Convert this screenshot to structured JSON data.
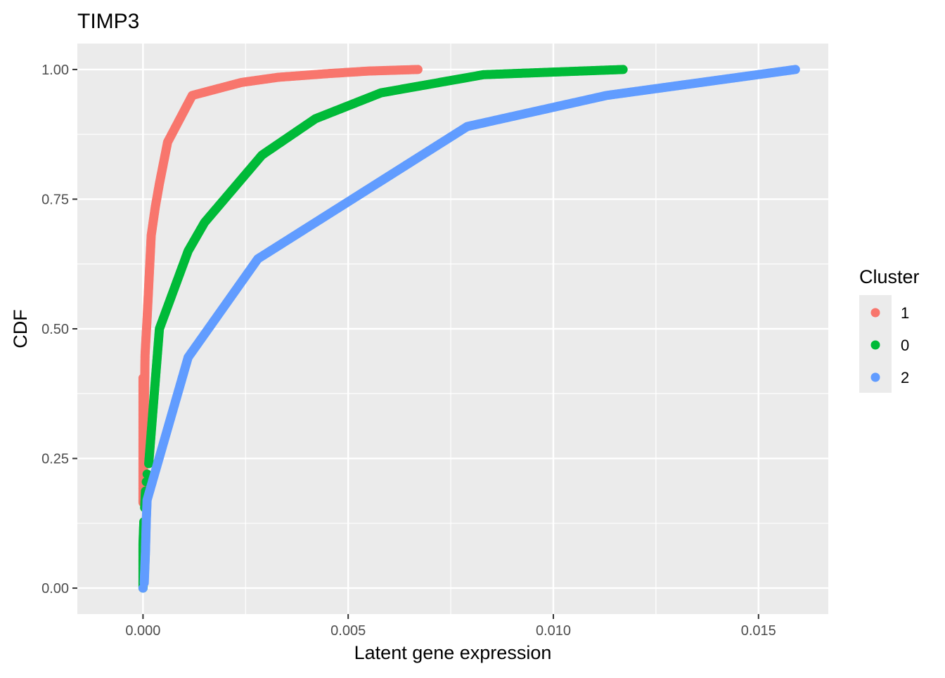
{
  "chart_data": {
    "type": "scatter",
    "title": "TIMP3",
    "xlabel": "Latent gene expression",
    "ylabel": "CDF",
    "xlim": [
      -0.0016,
      0.0167
    ],
    "ylim": [
      -0.05,
      1.05
    ],
    "x_ticks": [
      0.0,
      0.005,
      0.01,
      0.015
    ],
    "x_tick_labels": [
      "0.000",
      "0.005",
      "0.010",
      "0.015"
    ],
    "y_ticks": [
      0.0,
      0.25,
      0.5,
      0.75,
      1.0
    ],
    "y_tick_labels": [
      "0.00",
      "0.25",
      "0.50",
      "0.75",
      "1.00"
    ],
    "grid": true,
    "legend": {
      "title": "Cluster",
      "placement": "right"
    },
    "series": [
      {
        "name": "1",
        "color": "#F8766D",
        "points": [
          [
            0.0,
            0.405
          ],
          [
            0.0,
            0.165
          ],
          [
            5e-05,
            0.45
          ],
          [
            0.0001,
            0.52
          ],
          [
            0.00015,
            0.6
          ],
          [
            0.0002,
            0.68
          ],
          [
            0.0003,
            0.735
          ],
          [
            0.0004,
            0.78
          ],
          [
            0.0006,
            0.86
          ],
          [
            0.0012,
            0.95
          ],
          [
            0.0024,
            0.975
          ],
          [
            0.0033,
            0.985
          ],
          [
            0.0045,
            0.992
          ],
          [
            0.0055,
            0.997
          ],
          [
            0.0067,
            1.0
          ]
        ]
      },
      {
        "name": "0",
        "color": "#00BA38",
        "points": [
          [
            0.0,
            0.0
          ],
          [
            0.0,
            0.043
          ],
          [
            0.0,
            0.085
          ],
          [
            2e-05,
            0.128
          ],
          [
            4e-05,
            0.155
          ],
          [
            6e-05,
            0.187
          ],
          [
            8e-05,
            0.205
          ],
          [
            0.0001,
            0.22
          ],
          [
            0.00014,
            0.24
          ],
          [
            0.0002,
            0.3
          ],
          [
            0.00027,
            0.37
          ],
          [
            0.00035,
            0.45
          ],
          [
            0.0004,
            0.5
          ],
          [
            0.0011,
            0.65
          ],
          [
            0.0015,
            0.705
          ],
          [
            0.0029,
            0.835
          ],
          [
            0.0042,
            0.905
          ],
          [
            0.0058,
            0.955
          ],
          [
            0.0083,
            0.99
          ],
          [
            0.0117,
            1.0
          ]
        ]
      },
      {
        "name": "2",
        "color": "#619CFF",
        "points": [
          [
            0.0,
            0.0
          ],
          [
            3e-05,
            0.01
          ],
          [
            6e-05,
            0.07
          ],
          [
            8e-05,
            0.13
          ],
          [
            0.0001,
            0.17
          ],
          [
            0.0011,
            0.445
          ],
          [
            0.0028,
            0.635
          ],
          [
            0.0079,
            0.89
          ],
          [
            0.0113,
            0.95
          ],
          [
            0.0159,
            1.0
          ]
        ]
      }
    ]
  }
}
